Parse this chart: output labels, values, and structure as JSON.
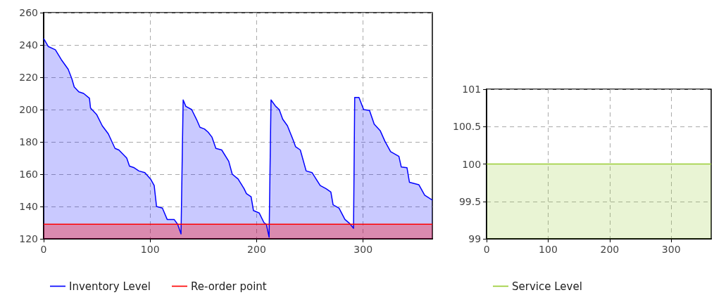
{
  "chart_data": [
    {
      "type": "area",
      "xlim": [
        0,
        365
      ],
      "xticks": [
        0,
        100,
        200,
        300
      ],
      "ylim": [
        120,
        260
      ],
      "yticks": [
        120,
        140,
        160,
        180,
        200,
        220,
        240,
        260
      ],
      "grid": true,
      "legend": "bottom left",
      "series": [
        {
          "name": "Inventory Level",
          "color": "#0000ff",
          "x": [
            0,
            4.4,
            11,
            16.5,
            23,
            26.5,
            28.7,
            33,
            37.5,
            43,
            44,
            49.7,
            55,
            60.7,
            67,
            70.6,
            78,
            80.6,
            85,
            89.4,
            95,
            100.4,
            103.8,
            106,
            111.5,
            116,
            122.5,
            125.8,
            129,
            131,
            133.5,
            139,
            143.5,
            146.8,
            151,
            154.5,
            158,
            161.7,
            167.2,
            173.8,
            177.1,
            182.6,
            188.2,
            190.4,
            194.8,
            197,
            202.4,
            206.9,
            209.1,
            211.7,
            213.5,
            217.9,
            221.2,
            224.5,
            228.9,
            234.4,
            236.6,
            241,
            246.5,
            252,
            259.7,
            265.2,
            269.7,
            271.8,
            277.4,
            282.9,
            287.3,
            291,
            292.1,
            296.1,
            300.5,
            306,
            310.4,
            316,
            320.4,
            325.8,
            333.6,
            335.8,
            341.2,
            343.5,
            352.3,
            357.8,
            365
          ],
          "values": [
            244,
            239,
            237,
            231,
            225,
            219,
            214,
            211,
            210,
            207,
            201,
            197,
            190,
            185,
            176,
            175,
            170,
            165,
            164,
            162,
            161,
            157,
            153,
            140,
            139,
            132,
            132,
            129,
            123,
            206,
            202,
            200,
            194,
            189,
            188,
            186,
            183,
            176,
            175,
            168,
            160,
            157,
            151,
            148,
            146,
            137.5,
            136,
            130,
            129,
            121,
            206,
            202,
            200,
            194,
            190,
            181,
            177,
            175,
            162,
            161,
            153,
            151,
            149,
            141,
            139,
            132,
            129.5,
            126.5,
            207.5,
            207.5,
            200,
            199.5,
            191,
            187,
            180.5,
            174,
            171,
            164.5,
            164,
            155,
            153.5,
            147,
            144
          ]
        },
        {
          "name": "Re-order point",
          "color": "#ff0000",
          "x": [
            0,
            365
          ],
          "values": [
            129,
            129
          ]
        }
      ]
    },
    {
      "type": "area",
      "xlim": [
        0,
        365
      ],
      "xticks": [
        0,
        100,
        200,
        300
      ],
      "ylim": [
        99,
        101
      ],
      "yticks": [
        99,
        99.5,
        100,
        100.5,
        101
      ],
      "grid": true,
      "legend": "bottom left",
      "series": [
        {
          "name": "Service Level",
          "color": "#99cc33",
          "x": [
            0,
            365
          ],
          "values": [
            100,
            100
          ]
        }
      ]
    }
  ]
}
